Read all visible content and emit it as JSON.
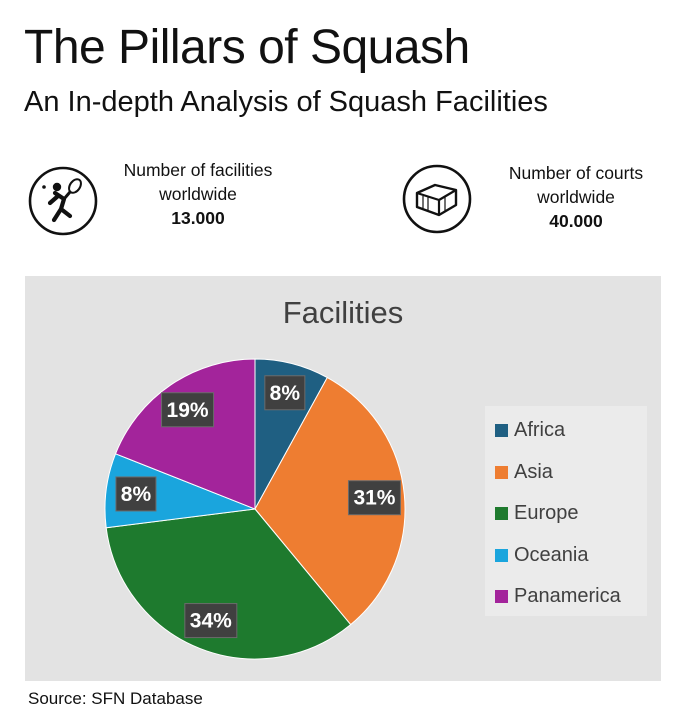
{
  "header": {
    "title": "The Pillars of Squash",
    "subtitle": "An In-depth Analysis of Squash Facilities"
  },
  "stats": [
    {
      "icon": "squash-player-icon",
      "label_line1": "Number of facilities",
      "label_line2": "worldwide",
      "value": "13.000"
    },
    {
      "icon": "squash-court-icon",
      "label_line1": "Number of courts",
      "label_line2": "worldwide",
      "value": "40.000"
    }
  ],
  "chart_data": {
    "type": "pie",
    "title": "Facilities",
    "categories": [
      "Africa",
      "Asia",
      "Europe",
      "Oceania",
      "Panamerica"
    ],
    "values": [
      8,
      31,
      34,
      8,
      19
    ],
    "unit": "%",
    "data_labels": [
      "8%",
      "31%",
      "34%",
      "8%",
      "19%"
    ],
    "colors": [
      "#1f5f82",
      "#ee7d31",
      "#1e7a2e",
      "#1aa5dd",
      "#a3249b"
    ],
    "legend_position": "right",
    "start_angle": "12 o'clock",
    "direction": "clockwise"
  },
  "footer": {
    "source": "Source: SFN Database"
  }
}
